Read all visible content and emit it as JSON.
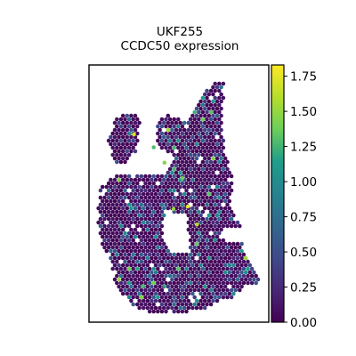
{
  "chart_data": {
    "type": "scatter",
    "subtype": "spatial-hexbin",
    "title_lines": [
      "UKF255",
      "CCDC50 expression"
    ],
    "xlabel": "",
    "ylabel": "",
    "colorbar": {
      "colormap": "viridis",
      "range": [
        0.0,
        1.83
      ],
      "ticks": [
        0.0,
        0.25,
        0.5,
        0.75,
        1.0,
        1.25,
        1.5,
        1.75
      ],
      "tick_labels": [
        "0.00",
        "0.25",
        "0.50",
        "0.75",
        "1.00",
        "1.25",
        "1.50",
        "1.75"
      ]
    },
    "spots": {
      "expression_summary": "most spots ~0 (dark purple); scattered spots 0.3–0.9; a few high (>1.3) mainly in the central band",
      "approx_high_spots": [
        {
          "x": 0.42,
          "y": 0.38,
          "value": 1.45
        },
        {
          "x": 0.36,
          "y": 0.32,
          "value": 1.3
        },
        {
          "x": 0.55,
          "y": 0.55,
          "value": 1.75
        },
        {
          "x": 0.6,
          "y": 0.62,
          "value": 1.6
        },
        {
          "x": 0.47,
          "y": 0.56,
          "value": 1.5
        },
        {
          "x": 0.25,
          "y": 0.27,
          "value": 1.7
        },
        {
          "x": 0.52,
          "y": 0.44,
          "value": 1.4
        },
        {
          "x": 0.3,
          "y": 0.86,
          "value": 1.3
        },
        {
          "x": 0.42,
          "y": 0.86,
          "value": 1.2
        },
        {
          "x": 0.7,
          "y": 0.68,
          "value": 1.1
        }
      ]
    },
    "colors": {
      "viridis_stops": [
        "#440154",
        "#482777",
        "#3f4a8a",
        "#31678e",
        "#26838f",
        "#1f9d8a",
        "#6cce5a",
        "#b6de2b",
        "#fee825"
      ]
    }
  }
}
